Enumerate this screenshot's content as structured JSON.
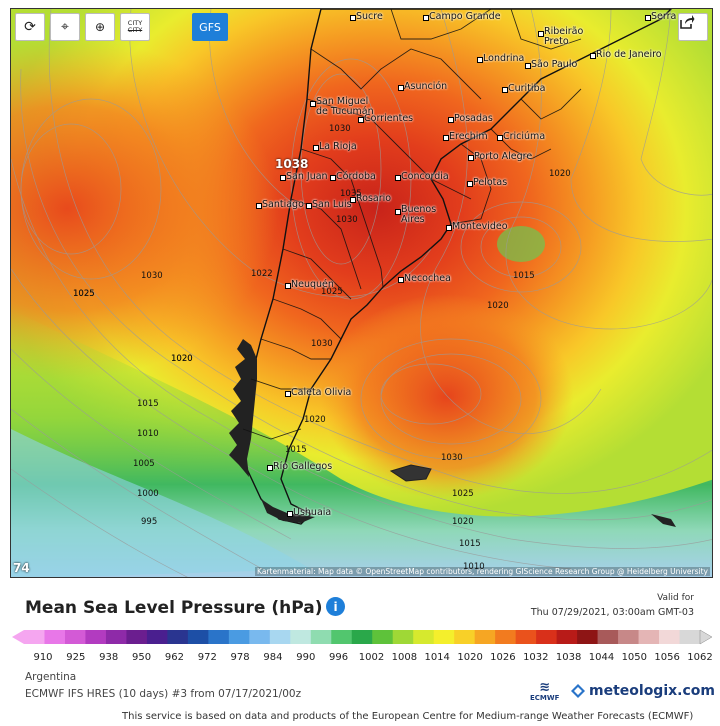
{
  "toolbar": {
    "refresh_icon": "refresh-icon",
    "location_icon": "location-pin-icon",
    "zoom_icon": "zoom-in-icon",
    "city_label_top": "CITY",
    "city_label_bottom": "CITY",
    "gfs_label": "GFS",
    "share_icon": "share-icon"
  },
  "map": {
    "cities": [
      {
        "name": "Sucre"
      },
      {
        "name": "Campo Grande"
      },
      {
        "name": "Serra"
      },
      {
        "name": "Ribeirão Preto"
      },
      {
        "name": "Londrina"
      },
      {
        "name": "São Paulo"
      },
      {
        "name": "Rio de Janeiro"
      },
      {
        "name": "Asunción"
      },
      {
        "name": "Curitiba"
      },
      {
        "name": "San Miguel de Tucumán"
      },
      {
        "name": "Corrientes"
      },
      {
        "name": "Posadas"
      },
      {
        "name": "Erechim"
      },
      {
        "name": "Criciúma"
      },
      {
        "name": "La Rioja"
      },
      {
        "name": "Porto Alegre"
      },
      {
        "name": "San Juan"
      },
      {
        "name": "Córdoba"
      },
      {
        "name": "Concordia"
      },
      {
        "name": "Pelotas"
      },
      {
        "name": "Santiago"
      },
      {
        "name": "San Luis"
      },
      {
        "name": "Rosario"
      },
      {
        "name": "Buenos Aires"
      },
      {
        "name": "Montevideo"
      },
      {
        "name": "Necochea"
      },
      {
        "name": "Neuquén"
      },
      {
        "name": "Caleta Olivia"
      },
      {
        "name": "Río Gallegos"
      },
      {
        "name": "Ushuaia"
      }
    ],
    "isobars": [
      "1025",
      "1020",
      "1030",
      "1025",
      "1020",
      "1015",
      "1010",
      "1005",
      "1000",
      "995",
      "1020",
      "1015",
      "1020",
      "1015",
      "1020",
      "1030",
      "1025",
      "1020",
      "1015",
      "1010",
      "1030",
      "1022",
      "1030",
      "1035",
      "1025",
      "1030"
    ],
    "high_label": "1038",
    "frame_number": "74",
    "attribution": "Kartenmaterial: Map data © OpenStreetMap contributors, rendering GIScience Research Group @ Heidelberg University"
  },
  "legend": {
    "title": "Mean Sea Level Pressure (hPa)",
    "info_icon": "info-icon",
    "valid_for_label": "Valid for",
    "valid_time": "Thu 07/29/2021, 03:00am GMT-03",
    "ticks": [
      "910",
      "925",
      "938",
      "950",
      "962",
      "972",
      "978",
      "984",
      "990",
      "996",
      "1002",
      "1008",
      "1014",
      "1020",
      "1026",
      "1032",
      "1038",
      "1044",
      "1050",
      "1056",
      "1062"
    ],
    "colors": [
      "#f5a6f0",
      "#e877e8",
      "#d35ad6",
      "#b23bc0",
      "#8e2aa8",
      "#6b1e8f",
      "#4a1f8f",
      "#2a3590",
      "#1d4fa6",
      "#2a74c9",
      "#4a9be2",
      "#79b9ee",
      "#a8d7f0",
      "#bfe8e0",
      "#8fdcb0",
      "#52c66e",
      "#2aa84a",
      "#5ec23a",
      "#9fd836",
      "#d6e92e",
      "#f4ef2c",
      "#f8d028",
      "#f6a623",
      "#f27b1f",
      "#ea521c",
      "#d9301a",
      "#b81b18",
      "#8e1515",
      "#a85a5a",
      "#c78888",
      "#e4b5b5",
      "#f2d8d8",
      "#d8d8d8"
    ]
  },
  "meta": {
    "region": "Argentina",
    "model_line": "ECMWF IFS HRES (10 days) #3 from 07/17/2021/00z",
    "ecmwf_logo_text": "ECMWF",
    "meteologix_logo": "meteologix.com",
    "footer": "This service is based on data and products of the European Centre for Medium-range Weather Forecasts (ECMWF)"
  }
}
